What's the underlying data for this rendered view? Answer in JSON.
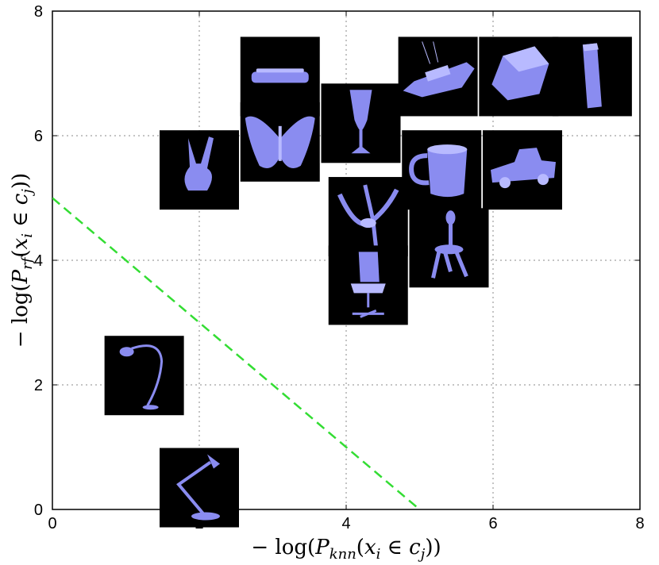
{
  "chart_data": {
    "type": "scatter",
    "title": "",
    "xlabel": "− log(P_knn(x_i ∈ c_j))",
    "ylabel": "− log(P_rf(x_i ∈ c_j))",
    "xlim": [
      0,
      8
    ],
    "ylim": [
      0,
      8
    ],
    "xticks": [
      0,
      2,
      4,
      6,
      8
    ],
    "yticks": [
      0,
      2,
      4,
      6,
      8
    ],
    "grid": true,
    "decision_line": {
      "from": [
        0,
        5
      ],
      "to": [
        5,
        0
      ],
      "color": "#33dd33",
      "style": "dashed"
    },
    "points": [
      {
        "name": "bench-icon",
        "x": 3.1,
        "y": 6.95
      },
      {
        "name": "hand-icon",
        "x": 2.0,
        "y": 5.45
      },
      {
        "name": "butterfly-icon",
        "x": 3.1,
        "y": 5.9
      },
      {
        "name": "goblet-icon",
        "x": 4.2,
        "y": 6.2
      },
      {
        "name": "tank-icon",
        "x": 5.25,
        "y": 6.95
      },
      {
        "name": "vehicle-icon",
        "x": 6.35,
        "y": 6.95
      },
      {
        "name": "tower-icon",
        "x": 7.35,
        "y": 6.95
      },
      {
        "name": "mug-icon",
        "x": 5.3,
        "y": 5.45
      },
      {
        "name": "truck-icon",
        "x": 6.4,
        "y": 5.45
      },
      {
        "name": "dancer-icon",
        "x": 4.3,
        "y": 4.7
      },
      {
        "name": "chair-icon",
        "x": 5.4,
        "y": 4.2
      },
      {
        "name": "office-chair-icon",
        "x": 4.3,
        "y": 3.6
      },
      {
        "name": "floor-lamp-icon",
        "x": 1.25,
        "y": 2.15
      },
      {
        "name": "desk-lamp-icon",
        "x": 2.0,
        "y": 0.35
      }
    ]
  }
}
